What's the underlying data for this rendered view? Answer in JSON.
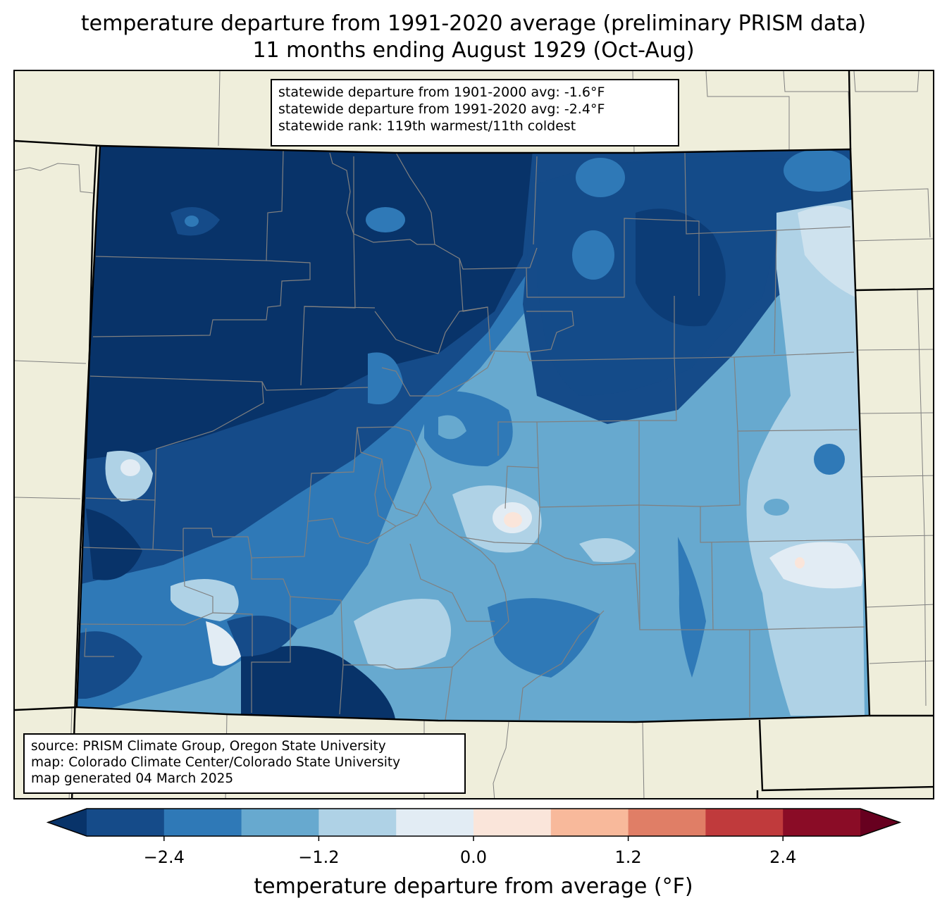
{
  "title": {
    "line1": "temperature departure from 1991-2020 average (preliminary PRISM data)",
    "line2": "11 months ending August 1929 (Oct-Aug)"
  },
  "stats_box": {
    "line1": "statewide departure from 1901-2000 avg: -1.6°F",
    "line2": "statewide departure from 1991-2020 avg: -2.4°F",
    "line3": "statewide rank: 119th warmest/11th coldest"
  },
  "source_box": {
    "line1": "source: PRISM Climate Group, Oregon State University",
    "line2": "map: Colorado Climate Center/Colorado State University",
    "line3": "map generated 04 March 2025"
  },
  "colorbar": {
    "label": "temperature departure from average (°F)",
    "ticks": [
      {
        "value": -2.4,
        "label": "−2.4"
      },
      {
        "value": -1.2,
        "label": "−1.2"
      },
      {
        "value": 0.0,
        "label": "0.0"
      },
      {
        "value": 1.2,
        "label": "1.2"
      },
      {
        "value": 2.4,
        "label": "2.4"
      }
    ],
    "levels": [
      -3.0,
      -2.4,
      -1.8,
      -1.2,
      -0.6,
      0.0,
      0.6,
      1.2,
      1.8,
      2.4,
      3.0
    ],
    "colors": [
      "#154b89",
      "#2f79b7",
      "#67a9cf",
      "#afd2e6",
      "#e2ecf4",
      "#fae5da",
      "#f8b99b",
      "#e07e66",
      "#c03a3c",
      "#8a0c26"
    ],
    "under_color": "#083369",
    "over_color": "#67001f"
  },
  "map_colors": {
    "land": "#efeedb",
    "state_border": "#000000",
    "county_border": "#808080"
  }
}
